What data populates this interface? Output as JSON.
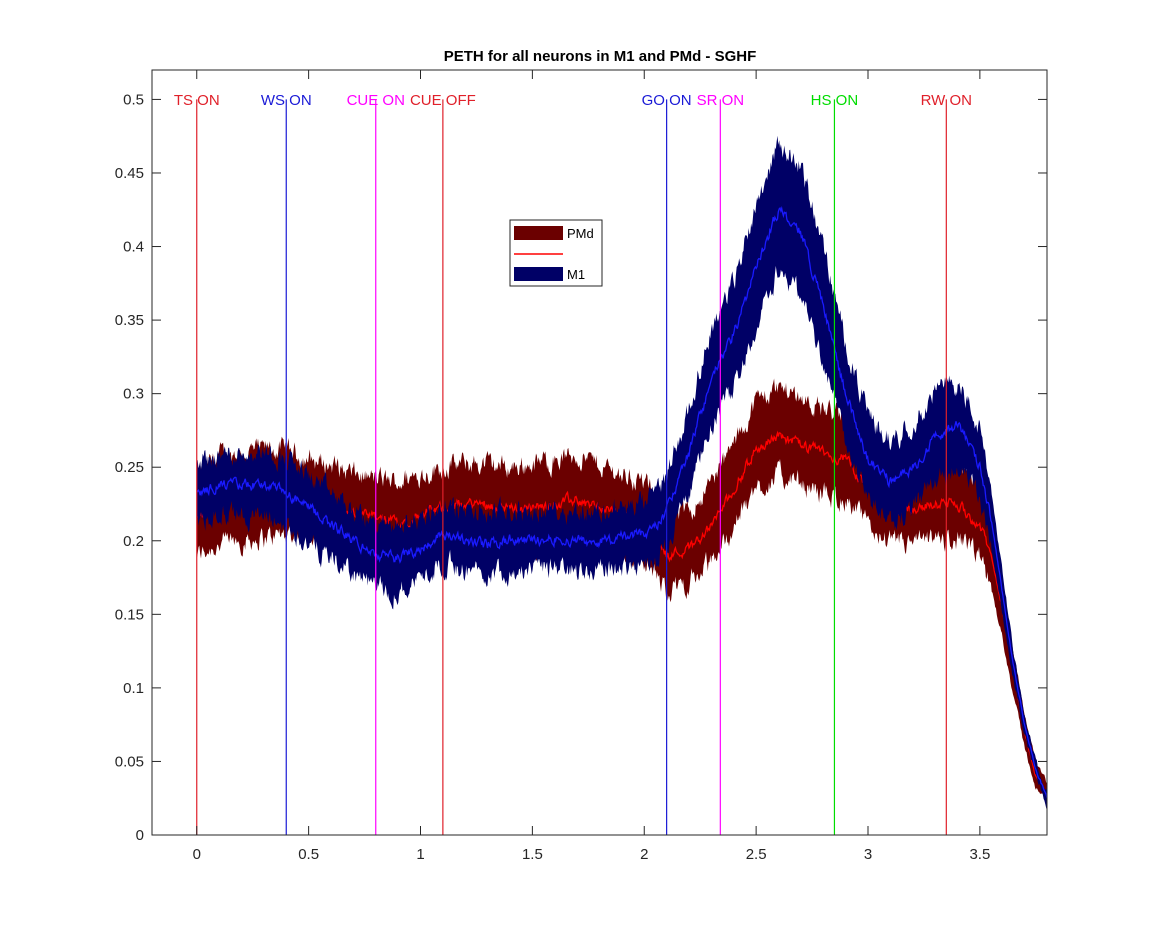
{
  "chart_data": {
    "type": "area",
    "title": "PETH for all neurons in M1 and PMd - SGHF",
    "xlabel": "",
    "ylabel": "",
    "xlim": [
      -0.2,
      3.8
    ],
    "ylim": [
      0,
      0.52
    ],
    "xticks": [
      0,
      0.5,
      1,
      1.5,
      2,
      2.5,
      3,
      3.5
    ],
    "xtick_labels": [
      "0",
      "0.5",
      "1",
      "1.5",
      "2",
      "2.5",
      "3",
      "3.5"
    ],
    "yticks": [
      0,
      0.05,
      0.1,
      0.15,
      0.2,
      0.25,
      0.3,
      0.35,
      0.4,
      0.45,
      0.5
    ],
    "ytick_labels": [
      "0",
      "0.05",
      "0.1",
      "0.15",
      "0.2",
      "0.25",
      "0.3",
      "0.35",
      "0.4",
      "0.45",
      "0.5"
    ],
    "grid": false,
    "legend": {
      "placement": "upper-center",
      "entries": [
        {
          "label": "PMd",
          "kind": "patch",
          "color": "#6b0000"
        },
        {
          "label": "",
          "kind": "line",
          "color": "#ff0000"
        },
        {
          "label": "M1",
          "kind": "patch",
          "color": "#000066"
        }
      ]
    },
    "events": [
      {
        "label": "TS ON",
        "x": 0.0,
        "color": "#e0202a"
      },
      {
        "label": "WS ON",
        "x": 0.4,
        "color": "#1a1ad6"
      },
      {
        "label": "CUE ON",
        "x": 0.8,
        "color": "#ff00ff"
      },
      {
        "label": "CUE OFF",
        "x": 1.1,
        "color": "#e0202a"
      },
      {
        "label": "GO ON",
        "x": 2.1,
        "color": "#1a1ad6"
      },
      {
        "label": "SR ON",
        "x": 2.34,
        "color": "#ff00ff"
      },
      {
        "label": "HS ON",
        "x": 2.85,
        "color": "#00dd00"
      },
      {
        "label": "RW ON",
        "x": 3.35,
        "color": "#e0202a"
      }
    ],
    "series": [
      {
        "name": "PMd",
        "band_color": "#6b0000",
        "mean_color": "#ff0000",
        "x": [
          0.0,
          0.1,
          0.2,
          0.3,
          0.4,
          0.5,
          0.6,
          0.7,
          0.8,
          0.9,
          1.0,
          1.1,
          1.2,
          1.3,
          1.4,
          1.5,
          1.6,
          1.7,
          1.8,
          1.9,
          2.0,
          2.1,
          2.2,
          2.3,
          2.4,
          2.5,
          2.6,
          2.7,
          2.8,
          2.9,
          3.0,
          3.1,
          3.2,
          3.3,
          3.4,
          3.5,
          3.55,
          3.6,
          3.65,
          3.7,
          3.75,
          3.8
        ],
        "mean": [
          0.215,
          0.225,
          0.23,
          0.232,
          0.233,
          0.23,
          0.225,
          0.218,
          0.215,
          0.212,
          0.218,
          0.222,
          0.225,
          0.225,
          0.222,
          0.222,
          0.225,
          0.228,
          0.222,
          0.218,
          0.212,
          0.19,
          0.195,
          0.21,
          0.235,
          0.262,
          0.272,
          0.265,
          0.26,
          0.255,
          0.235,
          0.222,
          0.222,
          0.225,
          0.225,
          0.21,
          0.19,
          0.155,
          0.11,
          0.07,
          0.04,
          0.028
        ],
        "upper": [
          0.245,
          0.258,
          0.26,
          0.262,
          0.262,
          0.255,
          0.252,
          0.245,
          0.242,
          0.24,
          0.245,
          0.25,
          0.252,
          0.252,
          0.25,
          0.252,
          0.255,
          0.258,
          0.252,
          0.245,
          0.24,
          0.215,
          0.22,
          0.24,
          0.265,
          0.295,
          0.305,
          0.298,
          0.29,
          0.282,
          0.262,
          0.25,
          0.252,
          0.255,
          0.255,
          0.235,
          0.215,
          0.175,
          0.125,
          0.082,
          0.05,
          0.035
        ],
        "lower": [
          0.19,
          0.198,
          0.2,
          0.202,
          0.205,
          0.205,
          0.2,
          0.192,
          0.19,
          0.188,
          0.192,
          0.195,
          0.198,
          0.198,
          0.195,
          0.195,
          0.198,
          0.2,
          0.195,
          0.192,
          0.188,
          0.165,
          0.172,
          0.185,
          0.21,
          0.235,
          0.245,
          0.238,
          0.232,
          0.228,
          0.21,
          0.198,
          0.198,
          0.2,
          0.2,
          0.188,
          0.168,
          0.135,
          0.095,
          0.06,
          0.032,
          0.022
        ]
      },
      {
        "name": "M1",
        "band_color": "#000066",
        "mean_color": "#1a1aff",
        "x": [
          0.0,
          0.1,
          0.2,
          0.3,
          0.4,
          0.5,
          0.6,
          0.7,
          0.8,
          0.9,
          1.0,
          1.1,
          1.2,
          1.3,
          1.4,
          1.5,
          1.6,
          1.7,
          1.8,
          1.9,
          2.0,
          2.05,
          2.1,
          2.2,
          2.3,
          2.4,
          2.5,
          2.6,
          2.7,
          2.8,
          2.9,
          3.0,
          3.1,
          3.2,
          3.3,
          3.4,
          3.5,
          3.55,
          3.6,
          3.65,
          3.7,
          3.75,
          3.8
        ],
        "mean": [
          0.232,
          0.238,
          0.238,
          0.238,
          0.232,
          0.222,
          0.212,
          0.2,
          0.19,
          0.188,
          0.195,
          0.205,
          0.2,
          0.198,
          0.2,
          0.2,
          0.202,
          0.2,
          0.2,
          0.202,
          0.205,
          0.21,
          0.22,
          0.26,
          0.31,
          0.34,
          0.385,
          0.425,
          0.41,
          0.36,
          0.3,
          0.255,
          0.24,
          0.25,
          0.27,
          0.28,
          0.25,
          0.215,
          0.165,
          0.115,
          0.075,
          0.045,
          0.025
        ],
        "upper": [
          0.252,
          0.258,
          0.26,
          0.262,
          0.255,
          0.245,
          0.232,
          0.22,
          0.212,
          0.21,
          0.215,
          0.225,
          0.22,
          0.218,
          0.22,
          0.22,
          0.222,
          0.22,
          0.22,
          0.222,
          0.225,
          0.232,
          0.245,
          0.29,
          0.345,
          0.375,
          0.43,
          0.47,
          0.455,
          0.4,
          0.335,
          0.285,
          0.268,
          0.28,
          0.302,
          0.308,
          0.275,
          0.235,
          0.18,
          0.125,
          0.082,
          0.05,
          0.03
        ],
        "lower": [
          0.212,
          0.218,
          0.218,
          0.215,
          0.21,
          0.198,
          0.188,
          0.178,
          0.168,
          0.165,
          0.175,
          0.185,
          0.18,
          0.178,
          0.18,
          0.18,
          0.182,
          0.18,
          0.18,
          0.182,
          0.185,
          0.188,
          0.198,
          0.232,
          0.278,
          0.305,
          0.345,
          0.385,
          0.368,
          0.322,
          0.268,
          0.228,
          0.212,
          0.222,
          0.24,
          0.252,
          0.228,
          0.195,
          0.15,
          0.105,
          0.068,
          0.04,
          0.02
        ]
      }
    ]
  }
}
